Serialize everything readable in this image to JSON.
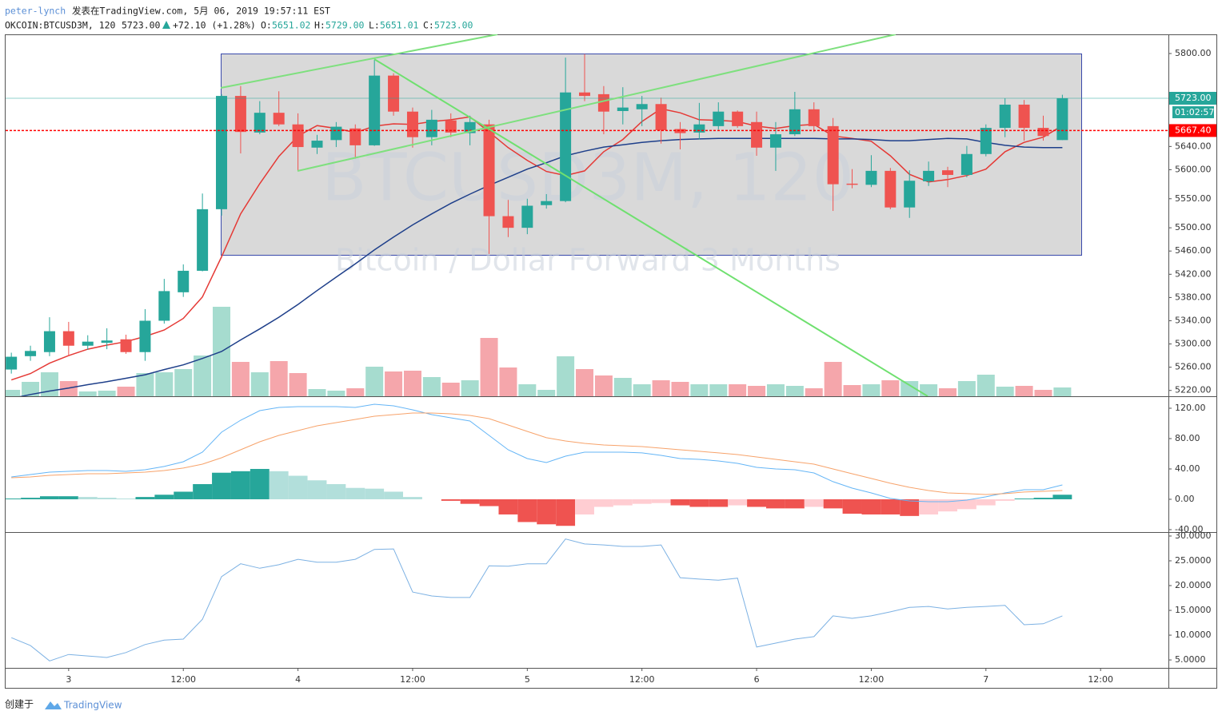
{
  "header": {
    "author": "peter-lynch",
    "published": "发表在TradingView.com, 5月 06, 2019 19:57:11 EST",
    "symbol": "OKCOIN:BTCUSD3M, 120",
    "price": "5723.00",
    "change": "+72.10 (+1.28%)",
    "ohlc": [
      {
        "label": "O:",
        "value": "5651.02"
      },
      {
        "label": "H:",
        "value": "5729.00"
      },
      {
        "label": "L:",
        "value": "5651.01"
      },
      {
        "label": "C:",
        "value": "5723.00"
      }
    ]
  },
  "footer": {
    "created": "创建于",
    "brand": "TradingView"
  },
  "chart_data": [
    {
      "type": "candlestick",
      "watermark": "BTCUSD3M, 120",
      "description": "Bitcoin / Dollar Forward 3 Months",
      "x": [
        -6,
        -4,
        -2,
        0,
        2,
        4,
        6,
        8,
        10,
        12,
        14,
        16,
        18,
        20,
        22,
        24,
        26,
        28,
        30,
        32,
        34,
        36,
        38,
        40,
        42,
        44,
        46,
        48,
        50,
        52,
        54,
        56,
        58,
        60,
        62,
        64,
        66,
        68,
        70,
        72,
        74,
        76,
        78,
        80,
        82,
        84,
        86,
        88,
        90,
        92,
        94,
        96,
        98,
        100,
        102,
        104
      ],
      "xlim": [
        -6.6,
        115.1
      ],
      "xticks": [
        {
          "value": 0,
          "label": "3"
        },
        {
          "value": 12,
          "label": "12:00"
        },
        {
          "value": 24,
          "label": "4"
        },
        {
          "value": 36,
          "label": "12:00"
        },
        {
          "value": 48,
          "label": "5"
        },
        {
          "value": 60,
          "label": "12:00"
        },
        {
          "value": 72,
          "label": "6"
        },
        {
          "value": 84,
          "label": "12:00"
        },
        {
          "value": 96,
          "label": "7"
        },
        {
          "value": 108,
          "label": "12:00"
        }
      ],
      "ylim": [
        5210,
        5833
      ],
      "yticks": [
        {
          "value": 5800,
          "label": "5800.00"
        },
        {
          "value": 5640,
          "label": "5640.00"
        },
        {
          "value": 5600,
          "label": "5600.00"
        },
        {
          "value": 5550,
          "label": "5550.00"
        },
        {
          "value": 5500,
          "label": "5500.00"
        },
        {
          "value": 5460,
          "label": "5460.00"
        },
        {
          "value": 5420,
          "label": "5420.00"
        },
        {
          "value": 5380,
          "label": "5380.00"
        },
        {
          "value": 5340,
          "label": "5340.00"
        },
        {
          "value": 5300,
          "label": "5300.00"
        },
        {
          "value": 5260,
          "label": "5260.00"
        },
        {
          "value": 5220,
          "label": "5220.00"
        }
      ],
      "grid": false,
      "up_color": "#26a69a",
      "down_color": "#ef5350",
      "open": [
        5256,
        5279,
        5286,
        5322,
        5297,
        5302,
        5308,
        5286,
        5340,
        5389,
        5426,
        5532,
        5727,
        5664,
        5698,
        5678,
        5638,
        5651,
        5671,
        5642,
        5762,
        5700,
        5656,
        5685,
        5663,
        5678,
        5520,
        5500,
        5539,
        5546,
        5733,
        5730,
        5701,
        5704,
        5713,
        5670,
        5664,
        5675,
        5700,
        5682,
        5638,
        5661,
        5704,
        5675,
        5576,
        5574,
        5598,
        5535,
        5580,
        5599,
        5591,
        5627,
        5672,
        5712,
        5672,
        5651.02
      ],
      "high": [
        5285,
        5297,
        5346,
        5338,
        5315,
        5327,
        5316,
        5360,
        5412,
        5437,
        5559,
        5730,
        5744,
        5718,
        5735,
        5697,
        5660,
        5682,
        5678,
        5789,
        5766,
        5707,
        5703,
        5697,
        5693,
        5686,
        5548,
        5550,
        5558,
        5793,
        5799,
        5744,
        5742,
        5727,
        5724,
        5682,
        5715,
        5716,
        5702,
        5700,
        5682,
        5734,
        5716,
        5689,
        5601,
        5625,
        5603,
        5599,
        5614,
        5605,
        5641,
        5678,
        5723,
        5720,
        5693,
        5729
      ],
      "low": [
        5249,
        5271,
        5279,
        5279,
        5290,
        5291,
        5283,
        5271,
        5335,
        5381,
        5425,
        5521,
        5628,
        5661,
        5675,
        5598,
        5627,
        5639,
        5619,
        5641,
        5693,
        5638,
        5642,
        5656,
        5642,
        5455,
        5484,
        5489,
        5533,
        5544,
        5718,
        5661,
        5678,
        5675,
        5645,
        5635,
        5652,
        5669,
        5672,
        5624,
        5598,
        5658,
        5665,
        5529,
        5568,
        5570,
        5532,
        5517,
        5572,
        5570,
        5587,
        5623,
        5656,
        5650,
        5650,
        5651.01
      ],
      "close": [
        5278,
        5288,
        5322,
        5297,
        5304,
        5306,
        5286,
        5340,
        5391,
        5426,
        5532,
        5727,
        5665,
        5698,
        5678,
        5639,
        5650,
        5674,
        5642,
        5762,
        5700,
        5656,
        5686,
        5664,
        5682,
        5520,
        5500,
        5538,
        5546,
        5733,
        5727,
        5700,
        5707,
        5713,
        5668,
        5663,
        5678,
        5700,
        5675,
        5638,
        5661,
        5704,
        5675,
        5575,
        5574,
        5598,
        5535,
        5581,
        5598,
        5591,
        5627,
        5672,
        5712,
        5672,
        5658,
        5723
      ],
      "volume": {
        "ylim": [
          0,
          453
        ],
        "up_color": "#a6dccf",
        "down_color": "#f5a6ab",
        "values": [
          8,
          18,
          30,
          19,
          6,
          7,
          12,
          29,
          30,
          34,
          51,
          112,
          43,
          30,
          44,
          29,
          9,
          7,
          10,
          37,
          31,
          32,
          24,
          17,
          20,
          73,
          36,
          15,
          8,
          50,
          34,
          26,
          23,
          15,
          20,
          18,
          15,
          15,
          15,
          13,
          15,
          13,
          10,
          43,
          14,
          15,
          20,
          19,
          15,
          10,
          19,
          27,
          12,
          13,
          8,
          11
        ]
      },
      "lines": [
        {
          "color": "#e53935",
          "values": [
            5238,
            5249,
            5267,
            5280,
            5291,
            5298,
            5304,
            5313,
            5324,
            5344,
            5381,
            5450,
            5524,
            5576,
            5623,
            5658,
            5676,
            5671,
            5664,
            5675,
            5679,
            5678,
            5683,
            5686,
            5691,
            5665,
            5638,
            5616,
            5597,
            5590,
            5598,
            5631,
            5652,
            5683,
            5705,
            5698,
            5686,
            5685,
            5683,
            5675,
            5671,
            5676,
            5678,
            5658,
            5654,
            5649,
            5624,
            5592,
            5579,
            5583,
            5590,
            5601,
            5631,
            5647,
            5656,
            5676
          ]
        },
        {
          "color": "#1e3f8a",
          "values": [
            5206,
            5213,
            5219,
            5224,
            5230,
            5235,
            5241,
            5247,
            5256,
            5264,
            5275,
            5287,
            5307,
            5326,
            5346,
            5368,
            5392,
            5415,
            5438,
            5462,
            5484,
            5505,
            5524,
            5542,
            5558,
            5573,
            5587,
            5601,
            5612,
            5624,
            5632,
            5639,
            5643,
            5647,
            5650,
            5652,
            5653,
            5654,
            5654,
            5654,
            5654,
            5654,
            5654,
            5653,
            5653,
            5652,
            5650,
            5650,
            5652,
            5654,
            5653,
            5647,
            5642,
            5639,
            5638,
            5638
          ]
        }
      ],
      "last_price": {
        "value": 5723,
        "label": "5723.00",
        "color": "#26a69a"
      },
      "countdown": "01:02:57",
      "price_line": {
        "value": 5667.4,
        "label": "5667.40",
        "color": "#ff0000"
      }
    },
    {
      "type": "combo",
      "ylim": [
        -43.2,
        135.8
      ],
      "yticks": [
        {
          "value": 120,
          "label": "120.00"
        },
        {
          "value": 80,
          "label": "80.00"
        },
        {
          "value": 40,
          "label": "40.00"
        },
        {
          "value": 0,
          "label": "0.00"
        },
        {
          "value": -40,
          "label": "-40.00"
        }
      ],
      "histogram": {
        "colors": [
          "#26a69a",
          "#b2dfdb",
          "#ef5350",
          "#ffcdd2"
        ],
        "values": [
          1,
          2,
          4,
          4,
          3,
          2,
          1,
          3,
          6,
          10,
          20,
          35,
          37,
          40,
          37,
          31,
          25,
          20,
          15,
          14,
          10,
          3,
          0,
          -2,
          -6,
          -9,
          -20,
          -30,
          -33,
          -35,
          -20,
          -10,
          -8,
          -6,
          -5,
          -8,
          -10,
          -10,
          -8,
          -10,
          -12,
          -12,
          -10,
          -12,
          -19,
          -20,
          -20,
          -22,
          -20,
          -16,
          -13,
          -8,
          -2,
          1,
          2,
          6
        ]
      },
      "lines": [
        {
          "color": "#64b5f6",
          "values": [
            29.5,
            32.6,
            35.8,
            36.8,
            37.9,
            37.9,
            36.8,
            38.9,
            43.2,
            49.5,
            62.1,
            88.4,
            104.2,
            116.8,
            121.1,
            122.1,
            122.1,
            122.1,
            121.1,
            125.3,
            123.2,
            117.9,
            111.6,
            107.4,
            103.2,
            84.2,
            65.3,
            53.7,
            48.4,
            56.8,
            62.1,
            62.1,
            62.1,
            61.1,
            57.9,
            53.7,
            52.6,
            50.5,
            47.4,
            42.1,
            40,
            38.9,
            34.7,
            23.2,
            14.7,
            8.4,
            1.1,
            -2.1,
            -3.2,
            -3.2,
            -1.1,
            3.2,
            8.4,
            12.6,
            12.6,
            18.9
          ]
        },
        {
          "color": "#f7a36b",
          "values": [
            28.4,
            29.5,
            31.6,
            32.6,
            33.7,
            33.7,
            34.7,
            35.8,
            37.9,
            41.1,
            46.3,
            54.7,
            65.3,
            75.8,
            84.2,
            90.5,
            96.8,
            101.1,
            105.3,
            109.5,
            111.6,
            113.7,
            113.7,
            112.6,
            110.5,
            106.3,
            97.9,
            89.5,
            81.1,
            76.8,
            73.7,
            71.6,
            70.5,
            69.5,
            67.4,
            65.3,
            63.2,
            61.1,
            58.9,
            55.8,
            52.6,
            49.5,
            46.3,
            40,
            33.7,
            27.4,
            21.1,
            15.8,
            11.6,
            8.4,
            7.4,
            6.3,
            7.4,
            9.5,
            10.5,
            11.6
          ]
        }
      ]
    },
    {
      "type": "line",
      "ylim": [
        3.4,
        30.8
      ],
      "color": "#7cb1e3",
      "yticks": [
        {
          "value": 30,
          "label": "30.0000"
        },
        {
          "value": 25,
          "label": "25.0000"
        },
        {
          "value": 20,
          "label": "20.0000"
        },
        {
          "value": 15,
          "label": "15.0000"
        },
        {
          "value": 10,
          "label": "10.0000"
        },
        {
          "value": 5,
          "label": "5.0000"
        }
      ],
      "values": [
        9.5,
        7.9,
        4.8,
        6.1,
        5.8,
        5.5,
        6.5,
        8.1,
        9.0,
        9.2,
        13.2,
        21.8,
        24.4,
        23.5,
        24.2,
        25.3,
        24.7,
        24.7,
        25.3,
        27.3,
        27.4,
        18.7,
        17.9,
        17.6,
        17.6,
        24.0,
        23.9,
        24.4,
        24.4,
        29.4,
        28.4,
        28.2,
        27.9,
        27.9,
        28.2,
        21.6,
        21.3,
        21.1,
        21.5,
        7.6,
        8.4,
        9.2,
        9.7,
        13.9,
        13.4,
        13.9,
        14.7,
        15.6,
        15.8,
        15.3,
        15.6,
        15.8,
        16.0,
        12.1,
        12.3,
        13.9
      ]
    }
  ]
}
